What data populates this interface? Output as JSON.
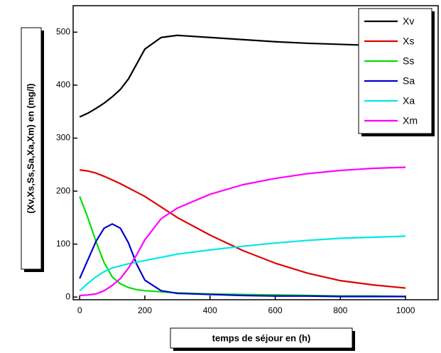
{
  "chart_data": {
    "type": "line",
    "x_label": "temps de séjour en (h)",
    "y_label": "(Xv,Xs,Ss,Sa,Xa,Xm) en (mg/l)",
    "x": [
      0,
      25,
      50,
      75,
      100,
      125,
      150,
      175,
      200,
      250,
      300,
      400,
      500,
      600,
      700,
      800,
      900,
      1000
    ],
    "series": [
      {
        "name": "Xv",
        "color": "#000000",
        "values": [
          340,
          347,
          356,
          366,
          378,
          392,
          412,
          440,
          468,
          490,
          494,
          490,
          486,
          482,
          479,
          477,
          475,
          473
        ]
      },
      {
        "name": "Xs",
        "color": "#e00000",
        "values": [
          240,
          238,
          234,
          228,
          221,
          214,
          206,
          198,
          190,
          170,
          150,
          117,
          88,
          64,
          45,
          31,
          23,
          17
        ]
      },
      {
        "name": "Ss",
        "color": "#00e000",
        "values": [
          190,
          150,
          105,
          65,
          38,
          25,
          18,
          14,
          12,
          10,
          8,
          6,
          5,
          4,
          3,
          2,
          2,
          1
        ]
      },
      {
        "name": "Sa",
        "color": "#0000d0",
        "values": [
          35,
          70,
          105,
          130,
          138,
          130,
          102,
          62,
          32,
          12,
          7,
          5,
          3,
          2,
          2,
          1,
          1,
          1
        ]
      },
      {
        "name": "Xa",
        "color": "#00e8e8",
        "values": [
          12,
          26,
          38,
          48,
          55,
          59,
          63,
          66,
          69,
          75,
          81,
          89,
          96,
          102,
          107,
          111,
          113,
          115
        ]
      },
      {
        "name": "Xm",
        "color": "#ff00ff",
        "values": [
          3,
          4,
          6,
          12,
          22,
          35,
          55,
          80,
          108,
          148,
          168,
          194,
          212,
          224,
          233,
          239,
          243,
          245
        ]
      }
    ],
    "xlim": [
      -20,
      1100
    ],
    "ylim": [
      -5,
      550
    ],
    "xticks": [
      0,
      200,
      400,
      600,
      800,
      1000
    ],
    "yticks": [
      0,
      100,
      200,
      300,
      400,
      500
    ],
    "legend": "top-right"
  }
}
